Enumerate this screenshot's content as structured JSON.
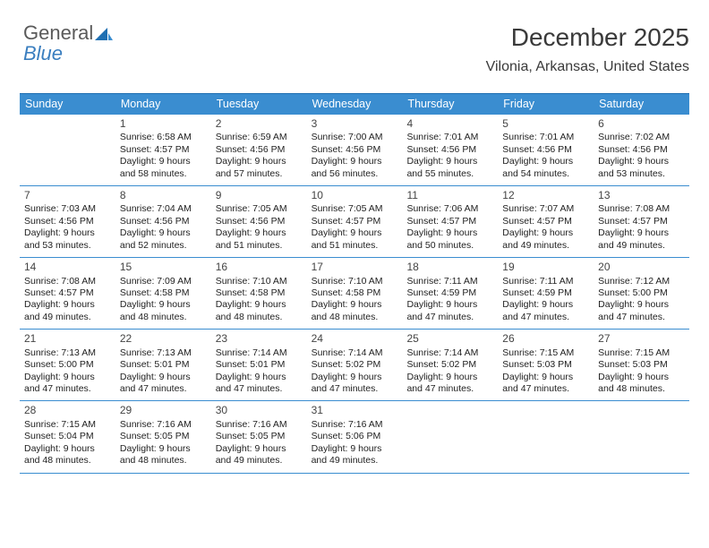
{
  "logo": {
    "word1": "General",
    "word2": "Blue",
    "icon_color_dark": "#1f6fb2",
    "icon_color_light": "#3a8dd0"
  },
  "title": "December 2025",
  "location": "Vilonia, Arkansas, United States",
  "header_bg": "#3a8dd0",
  "header_fg": "#ffffff",
  "row_border": "#3a8dd0",
  "day_headers": [
    "Sunday",
    "Monday",
    "Tuesday",
    "Wednesday",
    "Thursday",
    "Friday",
    "Saturday"
  ],
  "weeks": [
    [
      null,
      {
        "d": "1",
        "sr": "Sunrise: 6:58 AM",
        "ss": "Sunset: 4:57 PM",
        "dl1": "Daylight: 9 hours",
        "dl2": "and 58 minutes."
      },
      {
        "d": "2",
        "sr": "Sunrise: 6:59 AM",
        "ss": "Sunset: 4:56 PM",
        "dl1": "Daylight: 9 hours",
        "dl2": "and 57 minutes."
      },
      {
        "d": "3",
        "sr": "Sunrise: 7:00 AM",
        "ss": "Sunset: 4:56 PM",
        "dl1": "Daylight: 9 hours",
        "dl2": "and 56 minutes."
      },
      {
        "d": "4",
        "sr": "Sunrise: 7:01 AM",
        "ss": "Sunset: 4:56 PM",
        "dl1": "Daylight: 9 hours",
        "dl2": "and 55 minutes."
      },
      {
        "d": "5",
        "sr": "Sunrise: 7:01 AM",
        "ss": "Sunset: 4:56 PM",
        "dl1": "Daylight: 9 hours",
        "dl2": "and 54 minutes."
      },
      {
        "d": "6",
        "sr": "Sunrise: 7:02 AM",
        "ss": "Sunset: 4:56 PM",
        "dl1": "Daylight: 9 hours",
        "dl2": "and 53 minutes."
      }
    ],
    [
      {
        "d": "7",
        "sr": "Sunrise: 7:03 AM",
        "ss": "Sunset: 4:56 PM",
        "dl1": "Daylight: 9 hours",
        "dl2": "and 53 minutes."
      },
      {
        "d": "8",
        "sr": "Sunrise: 7:04 AM",
        "ss": "Sunset: 4:56 PM",
        "dl1": "Daylight: 9 hours",
        "dl2": "and 52 minutes."
      },
      {
        "d": "9",
        "sr": "Sunrise: 7:05 AM",
        "ss": "Sunset: 4:56 PM",
        "dl1": "Daylight: 9 hours",
        "dl2": "and 51 minutes."
      },
      {
        "d": "10",
        "sr": "Sunrise: 7:05 AM",
        "ss": "Sunset: 4:57 PM",
        "dl1": "Daylight: 9 hours",
        "dl2": "and 51 minutes."
      },
      {
        "d": "11",
        "sr": "Sunrise: 7:06 AM",
        "ss": "Sunset: 4:57 PM",
        "dl1": "Daylight: 9 hours",
        "dl2": "and 50 minutes."
      },
      {
        "d": "12",
        "sr": "Sunrise: 7:07 AM",
        "ss": "Sunset: 4:57 PM",
        "dl1": "Daylight: 9 hours",
        "dl2": "and 49 minutes."
      },
      {
        "d": "13",
        "sr": "Sunrise: 7:08 AM",
        "ss": "Sunset: 4:57 PM",
        "dl1": "Daylight: 9 hours",
        "dl2": "and 49 minutes."
      }
    ],
    [
      {
        "d": "14",
        "sr": "Sunrise: 7:08 AM",
        "ss": "Sunset: 4:57 PM",
        "dl1": "Daylight: 9 hours",
        "dl2": "and 49 minutes."
      },
      {
        "d": "15",
        "sr": "Sunrise: 7:09 AM",
        "ss": "Sunset: 4:58 PM",
        "dl1": "Daylight: 9 hours",
        "dl2": "and 48 minutes."
      },
      {
        "d": "16",
        "sr": "Sunrise: 7:10 AM",
        "ss": "Sunset: 4:58 PM",
        "dl1": "Daylight: 9 hours",
        "dl2": "and 48 minutes."
      },
      {
        "d": "17",
        "sr": "Sunrise: 7:10 AM",
        "ss": "Sunset: 4:58 PM",
        "dl1": "Daylight: 9 hours",
        "dl2": "and 48 minutes."
      },
      {
        "d": "18",
        "sr": "Sunrise: 7:11 AM",
        "ss": "Sunset: 4:59 PM",
        "dl1": "Daylight: 9 hours",
        "dl2": "and 47 minutes."
      },
      {
        "d": "19",
        "sr": "Sunrise: 7:11 AM",
        "ss": "Sunset: 4:59 PM",
        "dl1": "Daylight: 9 hours",
        "dl2": "and 47 minutes."
      },
      {
        "d": "20",
        "sr": "Sunrise: 7:12 AM",
        "ss": "Sunset: 5:00 PM",
        "dl1": "Daylight: 9 hours",
        "dl2": "and 47 minutes."
      }
    ],
    [
      {
        "d": "21",
        "sr": "Sunrise: 7:13 AM",
        "ss": "Sunset: 5:00 PM",
        "dl1": "Daylight: 9 hours",
        "dl2": "and 47 minutes."
      },
      {
        "d": "22",
        "sr": "Sunrise: 7:13 AM",
        "ss": "Sunset: 5:01 PM",
        "dl1": "Daylight: 9 hours",
        "dl2": "and 47 minutes."
      },
      {
        "d": "23",
        "sr": "Sunrise: 7:14 AM",
        "ss": "Sunset: 5:01 PM",
        "dl1": "Daylight: 9 hours",
        "dl2": "and 47 minutes."
      },
      {
        "d": "24",
        "sr": "Sunrise: 7:14 AM",
        "ss": "Sunset: 5:02 PM",
        "dl1": "Daylight: 9 hours",
        "dl2": "and 47 minutes."
      },
      {
        "d": "25",
        "sr": "Sunrise: 7:14 AM",
        "ss": "Sunset: 5:02 PM",
        "dl1": "Daylight: 9 hours",
        "dl2": "and 47 minutes."
      },
      {
        "d": "26",
        "sr": "Sunrise: 7:15 AM",
        "ss": "Sunset: 5:03 PM",
        "dl1": "Daylight: 9 hours",
        "dl2": "and 47 minutes."
      },
      {
        "d": "27",
        "sr": "Sunrise: 7:15 AM",
        "ss": "Sunset: 5:03 PM",
        "dl1": "Daylight: 9 hours",
        "dl2": "and 48 minutes."
      }
    ],
    [
      {
        "d": "28",
        "sr": "Sunrise: 7:15 AM",
        "ss": "Sunset: 5:04 PM",
        "dl1": "Daylight: 9 hours",
        "dl2": "and 48 minutes."
      },
      {
        "d": "29",
        "sr": "Sunrise: 7:16 AM",
        "ss": "Sunset: 5:05 PM",
        "dl1": "Daylight: 9 hours",
        "dl2": "and 48 minutes."
      },
      {
        "d": "30",
        "sr": "Sunrise: 7:16 AM",
        "ss": "Sunset: 5:05 PM",
        "dl1": "Daylight: 9 hours",
        "dl2": "and 49 minutes."
      },
      {
        "d": "31",
        "sr": "Sunrise: 7:16 AM",
        "ss": "Sunset: 5:06 PM",
        "dl1": "Daylight: 9 hours",
        "dl2": "and 49 minutes."
      },
      null,
      null,
      null
    ]
  ]
}
